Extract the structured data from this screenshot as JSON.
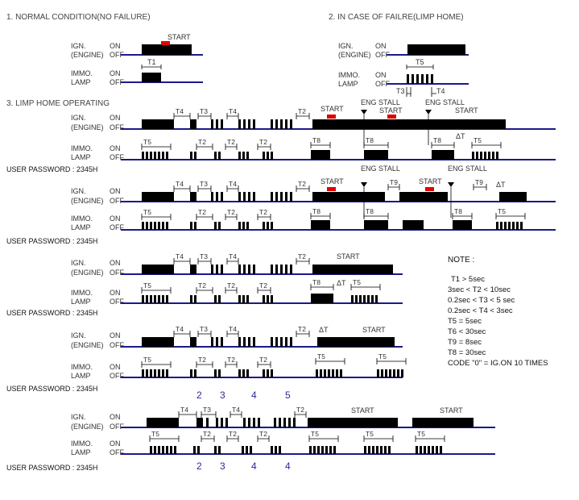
{
  "headings": {
    "normal": "1. NORMAL CONDITION(NO FAILURE)",
    "limp": "2. IN CASE OF FAILRE(LIMP HOME)",
    "operating": "3. LIMP HOME OPERATING"
  },
  "signals": {
    "ign_line1": "IGN.",
    "ign_line2": "(ENGINE)",
    "immo_line1": "IMMO.",
    "immo_line2": "LAMP",
    "on": "ON",
    "off": "OFF"
  },
  "password_label": "USER PASSWORD : 2345H",
  "tokens": {
    "start": "START",
    "eng_stall": "ENG STALL",
    "t1": "T1",
    "t2": "T2",
    "t3": "T3",
    "t4": "T4",
    "t5": "T5",
    "t8": "T8",
    "t9": "T9",
    "dt": "ΔT"
  },
  "note": {
    "title": "NOTE :",
    "lines": [
      "T1 > 5sec",
      "3sec < T2 < 10sec",
      "0.2sec < T3 < 5 sec",
      "0.2sec < T4 < 3sec",
      "T5 = 5sec",
      "T6 < 30sec",
      "T9 = 8sec",
      "T8 = 30sec",
      "CODE \"0\" = IG.ON 10 TIMES"
    ]
  },
  "digits_top": [
    "2",
    "3",
    "4",
    "5"
  ],
  "digits_bottom": [
    "2",
    "3",
    "4",
    "4"
  ],
  "colors": {
    "baseline": "#1a1a8c",
    "start_marker": "#e00000",
    "signal": "#000000",
    "digit": "#2a2a9a"
  }
}
